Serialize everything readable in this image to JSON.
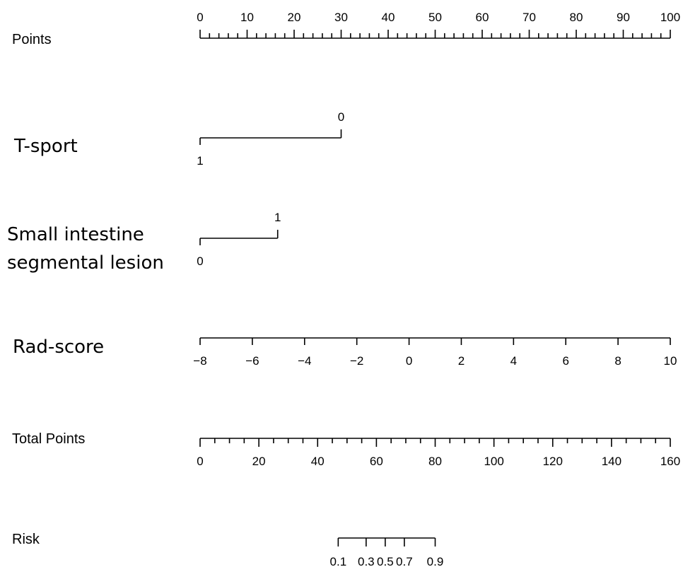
{
  "chart_data": {
    "type": "nomogram",
    "rows": [
      {
        "id": "points",
        "label": "Points",
        "kind": "scale",
        "min": 0,
        "max": 100,
        "labeled_ticks": [
          0,
          10,
          20,
          30,
          40,
          50,
          60,
          70,
          80,
          90,
          100
        ],
        "minor_step": 2,
        "label_position": "above"
      },
      {
        "id": "t-sport",
        "label": "T-sport",
        "kind": "categorical",
        "levels": [
          {
            "label": "1",
            "points": 0
          },
          {
            "label": "0",
            "points": 30
          }
        ]
      },
      {
        "id": "small-intestine",
        "label": [
          "Small intestine",
          "segmental lesion"
        ],
        "kind": "categorical",
        "levels": [
          {
            "label": "0",
            "points": 0
          },
          {
            "label": "1",
            "points": 16.5
          }
        ]
      },
      {
        "id": "rad-score",
        "label": "Rad-score",
        "kind": "scale",
        "min": -8,
        "max": 10,
        "labeled_ticks": [
          -8,
          -6,
          -4,
          -2,
          0,
          2,
          4,
          6,
          8,
          10
        ],
        "tick_labels": [
          "−8",
          "−6",
          "−4",
          "−2",
          "0",
          "2",
          "4",
          "6",
          "8",
          "10"
        ],
        "points_at_min": 0,
        "points_at_max": 100,
        "label_position": "below"
      },
      {
        "id": "total-points",
        "label": "Total Points",
        "kind": "scale",
        "min": 0,
        "max": 160,
        "labeled_ticks": [
          0,
          20,
          40,
          60,
          80,
          100,
          120,
          140,
          160
        ],
        "minor_step": 5,
        "label_position": "below"
      },
      {
        "id": "risk",
        "label": "Risk",
        "kind": "probability",
        "ticks": [
          {
            "label": "0.1",
            "total_points": 47
          },
          {
            "label": "0.3",
            "total_points": 56.5
          },
          {
            "label": "0.5",
            "total_points": 63
          },
          {
            "label": "0.7",
            "total_points": 69.5
          },
          {
            "label": "0.9",
            "total_points": 80
          }
        ],
        "label_position": "below"
      }
    ]
  }
}
